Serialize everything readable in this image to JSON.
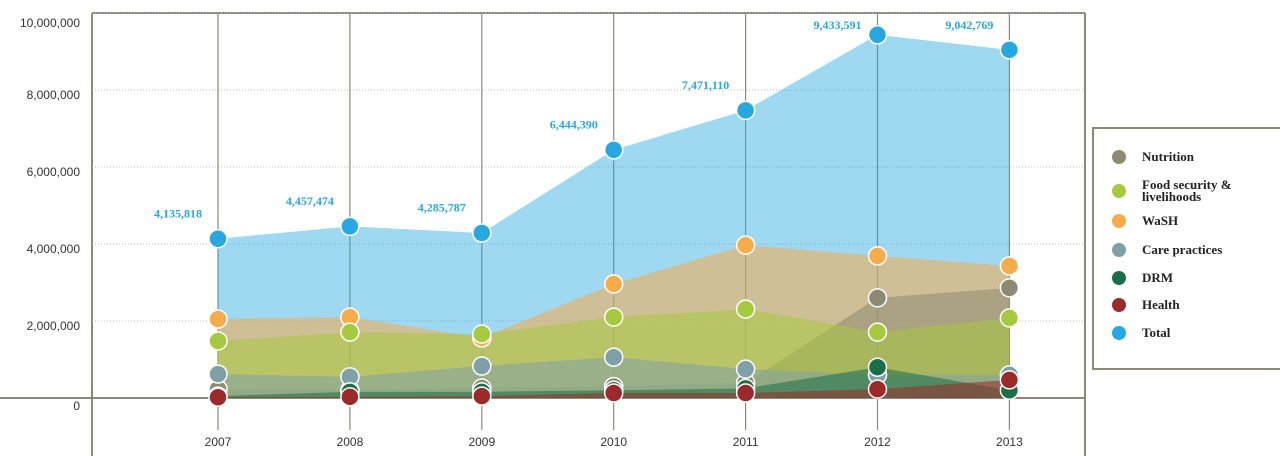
{
  "chart_data": {
    "type": "area",
    "categories": [
      "2007",
      "2008",
      "2009",
      "2010",
      "2011",
      "2012",
      "2013"
    ],
    "ylim": [
      0,
      10000000
    ],
    "yticks": [
      0,
      {
        "value": 2000000,
        "label": "2,000,000"
      },
      {
        "value": 4000000,
        "label": "4,000,000"
      },
      {
        "value": 6000000,
        "label": "6,000,000"
      },
      {
        "value": 8000000,
        "label": "8,000,000"
      },
      {
        "value": 10000000,
        "label": "10,000,000"
      }
    ],
    "grid": true,
    "legend": "right",
    "series": [
      {
        "name": "Nutrition",
        "color": "#8c8a72",
        "values": [
          230000,
          200000,
          260000,
          300000,
          390000,
          2600000,
          2860000
        ]
      },
      {
        "name": "Food security & livelihoods",
        "color": "#a6c940",
        "values": [
          1480000,
          1710000,
          1660000,
          2100000,
          2310000,
          1710000,
          2080000
        ]
      },
      {
        "name": "WaSH",
        "color": "#f5ac4a",
        "values": [
          2050000,
          2100000,
          1560000,
          2960000,
          3970000,
          3690000,
          3430000
        ]
      },
      {
        "name": "Care practices",
        "color": "#7fa0a6",
        "values": [
          620000,
          550000,
          830000,
          1060000,
          750000,
          600000,
          600000
        ]
      },
      {
        "name": "DRM",
        "color": "#1b6e47",
        "values": [
          50000,
          160000,
          160000,
          200000,
          250000,
          800000,
          200000
        ]
      },
      {
        "name": "Health",
        "color": "#9b2a2a",
        "values": [
          20000,
          30000,
          50000,
          130000,
          130000,
          230000,
          470000
        ]
      },
      {
        "name": "Total",
        "color": "#29a8e0",
        "values": [
          4135818,
          4457474,
          4285787,
          6444390,
          7471110,
          9433591,
          9042769
        ],
        "value_labels": [
          "4,135,818",
          "4,457,474",
          "4,285,787",
          "6,444,390",
          "7,471,110",
          "9,433,591",
          "9,042,769"
        ]
      }
    ]
  }
}
